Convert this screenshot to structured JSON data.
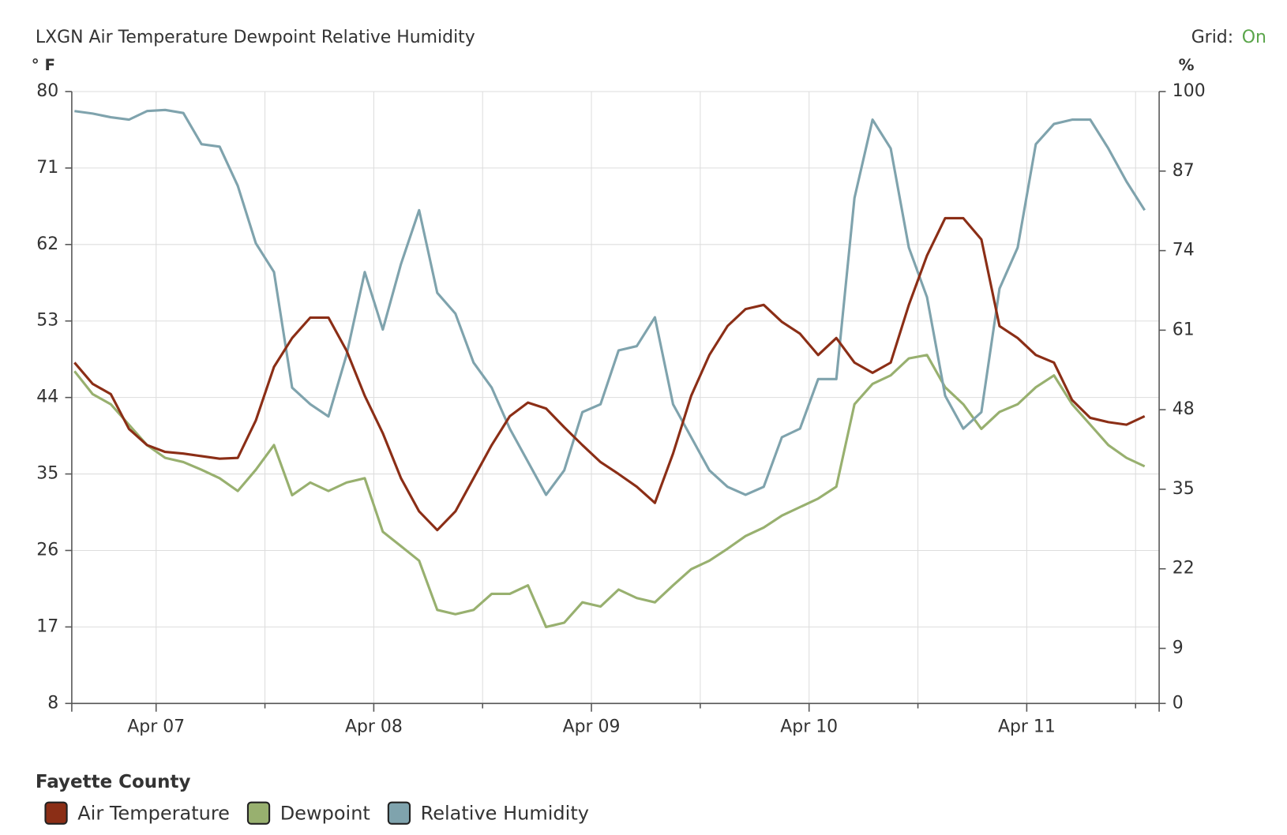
{
  "chart_data": {
    "type": "line",
    "title": "LXGN Air Temperature Dewpoint Relative Humidity",
    "grid_label": "Grid:",
    "grid_state": "On",
    "grid": true,
    "y_label": "° F",
    "y2_label": "%",
    "legend_title": "Fayette County",
    "x": [
      15,
      17,
      19,
      21,
      23,
      25,
      27,
      29,
      31,
      33,
      35,
      37,
      39,
      41,
      43,
      45,
      47,
      49,
      51,
      53,
      55,
      57,
      59,
      61,
      63,
      65,
      67,
      69,
      71,
      73,
      75,
      77,
      79,
      81,
      83,
      85,
      87,
      89,
      91,
      93,
      95,
      97,
      99,
      101,
      103,
      105,
      107,
      109,
      111,
      113,
      115,
      117,
      119,
      121,
      123,
      125,
      127,
      129,
      131,
      133
    ],
    "xlim": [
      14.7,
      134.6
    ],
    "xticks": [
      {
        "value": 24,
        "label": "Apr 07"
      },
      {
        "value": 48,
        "label": "Apr 08"
      },
      {
        "value": 72,
        "label": "Apr 09"
      },
      {
        "value": 96,
        "label": "Apr 10"
      },
      {
        "value": 120,
        "label": "Apr 11"
      }
    ],
    "xminor_ticks": [
      36,
      60,
      84,
      108,
      132
    ],
    "ylim": [
      8,
      80
    ],
    "yticks": [
      8,
      17,
      26,
      35,
      44,
      53,
      62,
      71,
      80
    ],
    "y2lim": [
      0,
      100
    ],
    "y2ticks": [
      0,
      9,
      22,
      35,
      48,
      61,
      74,
      87,
      100
    ],
    "series": [
      {
        "name": "Air Temperature",
        "color": "#8b2e16",
        "values": [
          48.1,
          45.6,
          44.4,
          40.3,
          38.4,
          37.6,
          37.4,
          37.1,
          36.8,
          36.9,
          41.3,
          47.6,
          51.0,
          53.4,
          53.4,
          49.5,
          44.2,
          39.8,
          34.5,
          30.6,
          28.4,
          30.6,
          34.5,
          38.4,
          41.8,
          43.4,
          42.7,
          40.5,
          38.4,
          36.4,
          35.0,
          33.5,
          31.6,
          37.4,
          44.2,
          49.0,
          52.4,
          54.4,
          54.9,
          52.9,
          51.5,
          49.0,
          51.0,
          48.1,
          46.9,
          48.1,
          54.9,
          60.7,
          65.1,
          65.1,
          62.6,
          52.4,
          51.0,
          49.0,
          48.1,
          43.7,
          41.6,
          41.1,
          40.8,
          41.8
        ]
      },
      {
        "name": "Dewpoint",
        "color": "#98b06f",
        "values": [
          47.1,
          44.4,
          43.2,
          40.8,
          38.4,
          36.9,
          36.4,
          35.5,
          34.5,
          33.0,
          35.5,
          38.4,
          32.5,
          34.0,
          33.0,
          34.0,
          34.5,
          28.2,
          26.5,
          24.8,
          19.0,
          18.5,
          19.0,
          20.9,
          20.9,
          21.9,
          17.0,
          17.5,
          19.9,
          19.4,
          21.4,
          20.4,
          19.9,
          21.9,
          23.8,
          24.8,
          26.2,
          27.7,
          28.7,
          30.1,
          31.1,
          32.1,
          33.5,
          43.2,
          45.6,
          46.6,
          48.6,
          49.0,
          45.2,
          43.2,
          40.3,
          42.3,
          43.2,
          45.2,
          46.6,
          43.2,
          40.8,
          38.4,
          36.9,
          35.9
        ]
      },
      {
        "name": "Relative Humidity",
        "color": "#7fa3ad",
        "axis": "y2",
        "values": [
          96.8,
          96.4,
          95.8,
          95.4,
          96.8,
          97.0,
          96.5,
          91.4,
          91.0,
          84.6,
          75.2,
          70.5,
          51.6,
          48.9,
          46.9,
          57.0,
          70.5,
          61.1,
          71.8,
          80.6,
          67.1,
          63.7,
          55.7,
          51.6,
          44.9,
          39.5,
          34.1,
          38.1,
          47.6,
          48.9,
          57.7,
          58.4,
          63.1,
          48.9,
          43.5,
          38.1,
          35.4,
          34.1,
          35.4,
          43.5,
          44.9,
          53.0,
          53.0,
          82.6,
          95.4,
          90.7,
          74.5,
          66.4,
          50.3,
          44.9,
          47.6,
          67.8,
          74.5,
          91.4,
          94.7,
          95.4,
          95.4,
          90.7,
          85.3,
          80.6
        ]
      }
    ]
  }
}
